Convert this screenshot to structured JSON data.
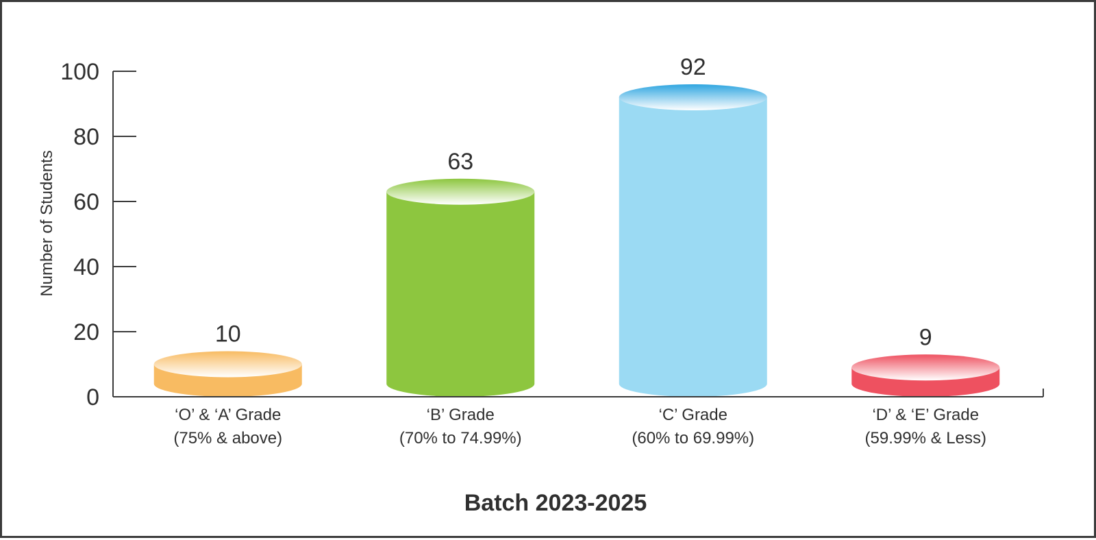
{
  "chart_data": {
    "type": "bar",
    "title": "",
    "xlabel": "Batch 2023-2025",
    "ylabel": "Number of Students",
    "ylim": [
      0,
      100
    ],
    "yticks": [
      "0",
      "20",
      "40",
      "60",
      "80",
      "100"
    ],
    "grid": false,
    "categories": [
      {
        "line1": "‘O’ & ‘A’ Grade",
        "line2": "(75% & above)"
      },
      {
        "line1": "‘B’ Grade",
        "line2": "(70% to 74.99%)"
      },
      {
        "line1": "‘C’ Grade",
        "line2": "(60% to 69.99%)"
      },
      {
        "line1": "‘D’ & ‘E’ Grade",
        "line2": "(59.99% & Less)"
      }
    ],
    "values": [
      10,
      63,
      92,
      9
    ],
    "value_labels": [
      "10",
      "63",
      "92",
      "9"
    ],
    "colors": [
      "#f8bb62",
      "#8dc63f",
      "#9bdaf3",
      "#ee5160"
    ],
    "top_colors": [
      "#f8bb62",
      "#8dc63f",
      "#2fa6e0",
      "#ee5160"
    ]
  }
}
